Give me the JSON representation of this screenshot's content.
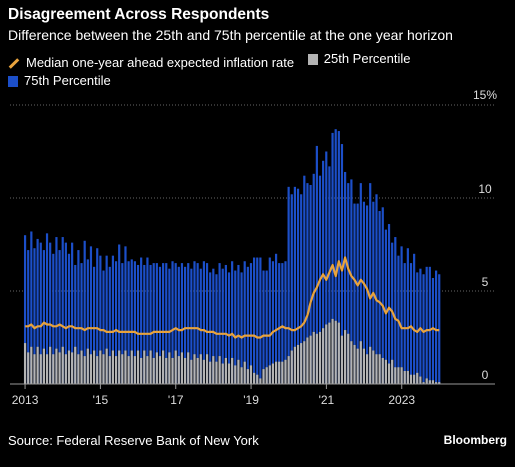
{
  "title": "Disagreement Across Respondents",
  "subtitle": "Difference between the 25th and 75th percentile at the one year horizon",
  "source": "Source: Federal Reserve Bank of New York",
  "brand": "Bloomberg",
  "chart_data": {
    "type": "bar",
    "x_start": 2013.0,
    "x_step": 0.0833,
    "x_range": [
      2012.6,
      2024.6
    ],
    "ylim": [
      0,
      15
    ],
    "y_ticks": [
      0,
      5,
      10,
      15
    ],
    "y_tick_labels": [
      "0",
      "5",
      "10",
      "15%"
    ],
    "x_ticks": [
      2013,
      2015,
      2017,
      2019,
      2021,
      2023
    ],
    "x_tick_labels": [
      "2013",
      "'15",
      "'17",
      "'19",
      "'21",
      "2023"
    ],
    "legend": [
      {
        "name": "Median one-year ahead expected inflation rate",
        "color": "#e8a33d",
        "kind": "line"
      },
      {
        "name": "25th Percentile",
        "color": "#b3b3b3",
        "kind": "bar"
      },
      {
        "name": "75th Percentile",
        "color": "#1c4fc9",
        "kind": "bar"
      }
    ],
    "series": [
      {
        "name": "75th Percentile",
        "values": [
          8.0,
          7.2,
          8.2,
          7.3,
          7.8,
          7.6,
          7.2,
          8.1,
          7.6,
          7.0,
          7.9,
          7.2,
          7.9,
          7.6,
          7.0,
          7.6,
          6.4,
          7.2,
          6.5,
          7.7,
          6.7,
          7.4,
          6.3,
          7.3,
          6.9,
          6.1,
          6.9,
          6.3,
          6.9,
          6.6,
          7.5,
          6.5,
          7.4,
          6.6,
          6.7,
          6.6,
          6.4,
          6.8,
          6.4,
          6.8,
          6.4,
          6.5,
          6.5,
          6.3,
          6.5,
          6.5,
          6.2,
          6.6,
          6.5,
          6.3,
          6.5,
          6.3,
          6.5,
          6.2,
          6.6,
          6.5,
          6.2,
          6.6,
          6.5,
          6.0,
          6.2,
          5.9,
          6.5,
          6.2,
          6.4,
          6.0,
          6.6,
          6.1,
          6.4,
          6.0,
          6.6,
          6.3,
          6.5,
          6.8,
          6.8,
          6.8,
          6.1,
          6.1,
          6.8,
          6.6,
          7.0,
          6.5,
          6.5,
          6.6,
          10.6,
          10.2,
          10.6,
          10.5,
          10.2,
          11.2,
          10.8,
          10.7,
          11.3,
          12.8,
          11.2,
          12.0,
          12.5,
          11.7,
          13.5,
          13.7,
          13.6,
          12.9,
          11.4,
          10.8,
          11.0,
          9.7,
          9.7,
          10.8,
          9.8,
          9.6,
          10.8,
          9.8,
          10.2,
          9.3,
          9.5,
          8.3,
          8.6,
          7.6,
          7.9,
          6.9,
          7.4,
          6.5,
          7.3,
          6.5,
          7.0,
          6.0,
          6.2,
          5.9,
          6.3,
          6.3,
          5.7,
          6.1,
          5.9
        ]
      },
      {
        "name": "25th Percentile",
        "values": [
          2.2,
          1.7,
          2.0,
          1.6,
          2.0,
          1.6,
          1.9,
          1.6,
          2.0,
          1.6,
          1.9,
          1.7,
          2.0,
          1.6,
          1.8,
          1.7,
          2.0,
          1.6,
          1.8,
          1.5,
          1.9,
          1.6,
          1.8,
          1.5,
          1.8,
          1.6,
          1.9,
          1.5,
          1.8,
          1.5,
          1.8,
          1.6,
          1.8,
          1.5,
          1.8,
          1.5,
          1.8,
          1.4,
          1.8,
          1.5,
          1.8,
          1.4,
          1.7,
          1.5,
          1.8,
          1.4,
          1.7,
          1.4,
          1.8,
          1.5,
          1.7,
          1.4,
          1.7,
          1.3,
          1.6,
          1.4,
          1.6,
          1.3,
          1.6,
          1.2,
          1.5,
          1.2,
          1.5,
          1.1,
          1.4,
          1.1,
          1.4,
          1.0,
          1.3,
          0.9,
          1.2,
          0.8,
          1.0,
          0.6,
          0.5,
          0.3,
          0.8,
          0.9,
          1.0,
          1.1,
          1.2,
          1.2,
          1.2,
          1.3,
          1.5,
          1.8,
          2.0,
          2.1,
          2.2,
          2.3,
          2.5,
          2.6,
          2.8,
          2.7,
          2.8,
          3.0,
          3.2,
          3.3,
          3.5,
          3.4,
          3.3,
          2.6,
          2.9,
          2.7,
          2.3,
          2.1,
          1.9,
          2.3,
          1.9,
          1.6,
          2.0,
          1.8,
          1.6,
          1.6,
          1.4,
          1.3,
          1.1,
          1.3,
          0.9,
          0.9,
          0.9,
          0.7,
          0.7,
          0.5,
          0.5,
          0.6,
          0.4,
          0.1,
          0.3,
          0.2,
          0.2,
          0.1,
          0.1
        ]
      },
      {
        "name": "Median one-year ahead expected inflation rate",
        "values": [
          3.1,
          3.1,
          3.2,
          3.0,
          3.1,
          3.1,
          3.3,
          3.2,
          3.2,
          3.1,
          3.1,
          3.2,
          3.1,
          3.0,
          3.1,
          3.1,
          3.0,
          3.0,
          3.0,
          2.9,
          3.0,
          3.0,
          3.0,
          3.0,
          2.9,
          2.9,
          2.8,
          2.8,
          2.8,
          2.9,
          2.8,
          2.8,
          2.8,
          2.8,
          2.8,
          2.8,
          2.7,
          2.7,
          2.7,
          2.7,
          2.7,
          2.8,
          2.8,
          2.8,
          2.8,
          2.8,
          2.8,
          2.9,
          3.0,
          2.9,
          2.9,
          3.0,
          3.0,
          3.0,
          3.0,
          3.0,
          2.9,
          2.9,
          2.8,
          2.8,
          2.8,
          2.7,
          2.7,
          2.7,
          2.7,
          2.6,
          2.7,
          2.5,
          2.6,
          2.5,
          2.6,
          2.6,
          2.6,
          2.6,
          2.5,
          2.5,
          2.6,
          2.6,
          2.6,
          2.8,
          2.9,
          3.0,
          3.1,
          3.0,
          3.0,
          2.9,
          2.9,
          3.0,
          3.1,
          3.3,
          3.7,
          4.4,
          4.9,
          5.2,
          5.6,
          5.9,
          5.6,
          6.0,
          6.4,
          5.8,
          6.6,
          6.1,
          6.8,
          6.2,
          5.8,
          5.6,
          5.3,
          5.6,
          5.4,
          5.1,
          4.6,
          4.9,
          4.5,
          4.4,
          4.2,
          3.8,
          4.1,
          3.9,
          3.5,
          3.4,
          3.0,
          3.0,
          3.0,
          3.1,
          2.9,
          2.8,
          3.0,
          2.8,
          2.9,
          2.9,
          3.0,
          2.9,
          2.9
        ]
      }
    ]
  }
}
